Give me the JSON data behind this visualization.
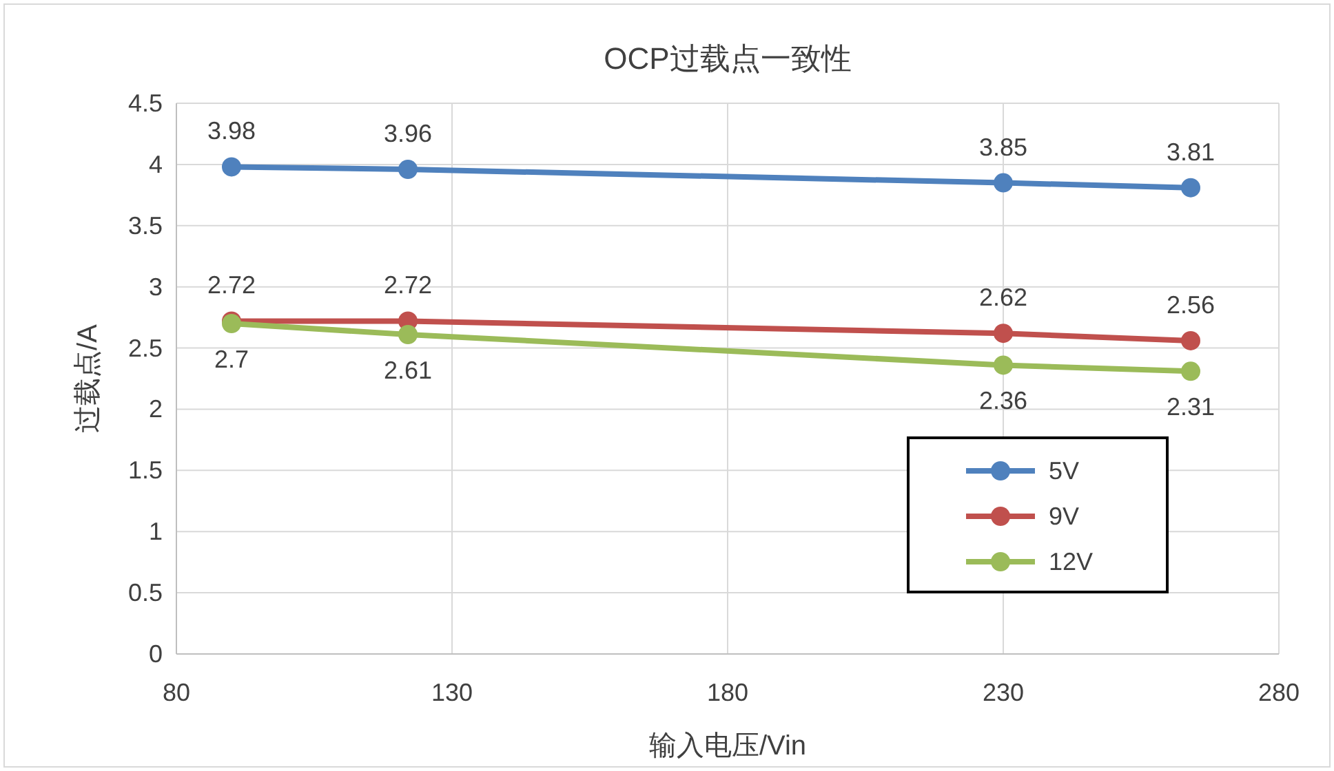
{
  "chart_data": {
    "type": "line",
    "title": "OCP过载点一致性",
    "xlabel": "输入电压/Vin",
    "ylabel": "过载点/A",
    "xlim": [
      80,
      280
    ],
    "xticks": [
      80,
      130,
      180,
      230,
      280
    ],
    "ylim": [
      0,
      4.5
    ],
    "yticks": [
      0,
      0.5,
      1,
      1.5,
      2,
      2.5,
      3,
      3.5,
      4,
      4.5
    ],
    "x": [
      90,
      122,
      230,
      264
    ],
    "series": [
      {
        "name": "5V",
        "color": "#4f81bd",
        "values": [
          3.98,
          3.96,
          3.85,
          3.81
        ]
      },
      {
        "name": "9V",
        "color": "#c0504d",
        "values": [
          2.72,
          2.72,
          2.62,
          2.56
        ]
      },
      {
        "name": "12V",
        "color": "#9bbb59",
        "values": [
          2.7,
          2.61,
          2.36,
          2.31
        ]
      }
    ],
    "data_labels": true,
    "marker": "circle",
    "grid": true,
    "legend": "bottom right"
  }
}
